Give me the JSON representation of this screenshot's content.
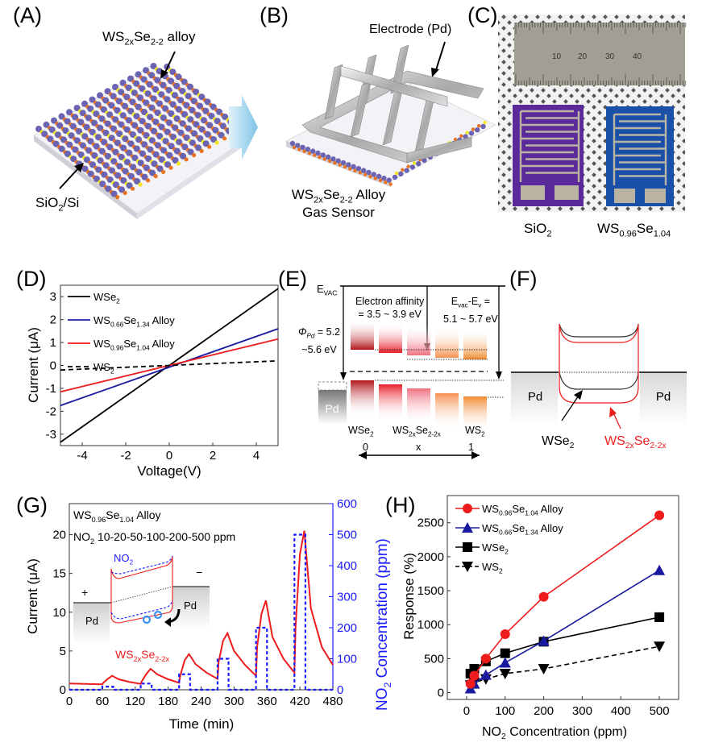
{
  "panels": {
    "A": {
      "label": "(A)",
      "alloy_label": {
        "pre": "WS",
        "s1": "2x",
        "mid": "Se",
        "s2": "2-2",
        "post": " alloy"
      },
      "substrate_label": {
        "pre": "SiO",
        "s1": "2",
        "post": "/Si"
      }
    },
    "B": {
      "label": "(B)",
      "electrode_label": "Electrode (Pd)",
      "caption_line1": {
        "pre": "WS",
        "s1": "2x",
        "mid": "Se",
        "s2": "2-2",
        "post": " Alloy"
      },
      "caption_line2": "Gas Sensor"
    },
    "C": {
      "label": "(C)",
      "ruler_ticks": [
        "10",
        "20",
        "30",
        "40"
      ],
      "left_sample": {
        "pre": "SiO",
        "s1": "2"
      },
      "right_sample": {
        "pre": "WS",
        "s1": "0.96",
        "mid": "Se",
        "s2": "1.04"
      },
      "colors": {
        "sio2": "#5a2a9a",
        "alloy": "#1a50a8",
        "electrode": "#b9b3a4",
        "ruler": "#9e9b90"
      }
    },
    "E": {
      "label": "(E)",
      "evac": {
        "pre": "E",
        "s1": "VAC"
      },
      "electron_affinity_line1": "Electron affinity",
      "electron_affinity_line2": "= 3.5 ~ 3.9 eV",
      "evac_ev_line1": {
        "pre": "E",
        "s1": "vac",
        "mid": "-E",
        "s2": "v",
        "post": " ="
      },
      "evac_ev_line2": "5.1 ~ 5.7 eV",
      "phi_line1": {
        "pre": "Φ",
        "s1": "Pd",
        "post": " = 5.2"
      },
      "phi_line2": "~5.6 eV",
      "pd_label": "Pd",
      "materials": [
        {
          "pre": "WSe",
          "s1": "2",
          "x": "0"
        },
        {
          "pre": "WS",
          "s1": "2x",
          "mid": "Se",
          "s2": "2-2x",
          "x": "x"
        },
        {
          "pre": "WS",
          "s1": "2",
          "x": "1"
        }
      ],
      "band_colors": [
        "#b0141a",
        "#e8202a",
        "#f07080",
        "#f59050",
        "#f08a30"
      ]
    },
    "F": {
      "label": "(F)",
      "pd_left": "Pd",
      "pd_right": "Pd",
      "wse2_label": {
        "pre": "WSe",
        "s1": "2"
      },
      "alloy_label": {
        "pre": "WS",
        "s1": "2x",
        "mid": "Se",
        "s2": "2-2x"
      }
    },
    "G": {
      "label": "(G)",
      "inset_title_1": {
        "pre": "WS",
        "s1": "0.96",
        "mid": "Se",
        "s2": "1.04",
        "post": " Alloy"
      },
      "inset_title_2": {
        "pre": "NO",
        "s1": "2",
        "post": " 10-20-50-100-200-500 ppm"
      },
      "inset_no2": {
        "pre": "NO",
        "s1": "2"
      },
      "inset_plus": "+",
      "inset_minus": "−",
      "inset_pd_left": "Pd",
      "inset_pd_right": "Pd",
      "material_label": {
        "pre": "WS",
        "s1": "2x",
        "mid": "Se",
        "s2": "2-2x"
      }
    },
    "H": {
      "label": "(H)"
    },
    "D": {
      "label": "(D)"
    }
  },
  "chart_data": [
    {
      "id": "D",
      "type": "line",
      "title": "",
      "xlabel": "Voltage(V)",
      "ylabel": "Current (μA)",
      "xlim": [
        -5,
        5
      ],
      "ylim": [
        -3.5,
        3.5
      ],
      "xticks": [
        -4,
        -2,
        0,
        2,
        4
      ],
      "yticks": [
        -3,
        -2,
        -1,
        0,
        1,
        2,
        3
      ],
      "legend_position": "top-left",
      "series": [
        {
          "name": "WSe2",
          "legend": {
            "pre": "WSe",
            "s1": "2"
          },
          "color": "#000000",
          "dash": false,
          "x": [
            -5,
            5
          ],
          "y": [
            -3.35,
            3.35
          ]
        },
        {
          "name": "WS0.66Se1.34 Alloy",
          "legend": {
            "pre": "WS",
            "s1": "0.66",
            "mid": "Se",
            "s2": "1.34",
            "post": " Alloy"
          },
          "color": "#1a1aa0",
          "dash": false,
          "x": [
            -5,
            5
          ],
          "y": [
            -1.75,
            1.6
          ]
        },
        {
          "name": "WS0.96Se1.04 Alloy",
          "legend": {
            "pre": "WS",
            "s1": "0.96",
            "mid": "Se",
            "s2": "1.04",
            "post": " Alloy"
          },
          "color": "#ee1c1c",
          "dash": false,
          "x": [
            -5,
            5
          ],
          "y": [
            -1.15,
            1.15
          ]
        },
        {
          "name": "WS2",
          "legend": {
            "pre": "WS",
            "s1": "2"
          },
          "color": "#000000",
          "dash": true,
          "x": [
            -5,
            5
          ],
          "y": [
            -0.2,
            0.2
          ]
        }
      ]
    },
    {
      "id": "G",
      "type": "line",
      "title": "",
      "xlabel": "Time (min)",
      "ylabel": "Current (μA)",
      "ylabel_right": {
        "pre": "NO",
        "s1": "2",
        "post": " Concentration (ppm)"
      },
      "xlim": [
        0,
        480
      ],
      "ylim": [
        0,
        24
      ],
      "ylim_right": [
        0,
        600
      ],
      "xticks": [
        0,
        60,
        120,
        180,
        240,
        300,
        360,
        420,
        480
      ],
      "yticks": [
        0,
        5,
        10,
        15,
        20
      ],
      "yticks_right": [
        0,
        100,
        200,
        300,
        400,
        500,
        600
      ],
      "series": [
        {
          "name": "Current",
          "axis": "left",
          "color": "#ee1c1c",
          "x": [
            0,
            60,
            62,
            70,
            78,
            90,
            110,
            130,
            132,
            140,
            148,
            160,
            180,
            200,
            202,
            210,
            218,
            230,
            250,
            270,
            272,
            280,
            288,
            300,
            320,
            340,
            342,
            350,
            358,
            370,
            390,
            410,
            412,
            420,
            428,
            440,
            460,
            480
          ],
          "y": [
            0.8,
            0.7,
            0.9,
            1.4,
            1.8,
            1.35,
            1.0,
            0.75,
            1.1,
            2.0,
            2.7,
            2.0,
            1.35,
            0.9,
            1.8,
            3.8,
            4.6,
            3.3,
            2.2,
            1.4,
            3.6,
            6.3,
            7.3,
            5.0,
            3.2,
            1.8,
            5.5,
            9.8,
            11.5,
            6.8,
            4.0,
            2.2,
            8.0,
            17.5,
            20.5,
            10.5,
            5.5,
            3.2
          ]
        },
        {
          "name": "NO2 Concentration",
          "axis": "right",
          "color": "#1a1aff",
          "dash": true,
          "x": [
            0,
            60,
            60,
            80,
            80,
            130,
            130,
            150,
            150,
            200,
            200,
            220,
            220,
            270,
            270,
            290,
            290,
            340,
            340,
            360,
            360,
            410,
            410,
            430,
            430,
            480
          ],
          "y": [
            0,
            0,
            10,
            10,
            0,
            0,
            20,
            20,
            0,
            0,
            50,
            50,
            0,
            0,
            100,
            100,
            0,
            0,
            200,
            200,
            0,
            0,
            500,
            500,
            0,
            0
          ]
        }
      ]
    },
    {
      "id": "H",
      "type": "line",
      "title": "",
      "xlabel": {
        "pre": "NO",
        "s1": "2",
        "post": " Concentration (ppm)"
      },
      "ylabel": "Response (%)",
      "xlim": [
        -50,
        550
      ],
      "ylim": [
        -100,
        2900
      ],
      "xticks": [
        0,
        100,
        200,
        300,
        400,
        500
      ],
      "yticks": [
        0,
        500,
        1000,
        1500,
        2000,
        2500
      ],
      "legend_position": "top-left",
      "x": [
        10,
        20,
        50,
        100,
        200,
        500
      ],
      "series": [
        {
          "name": "WS0.96Se1.04 Alloy",
          "legend": {
            "pre": "WS",
            "s1": "0.96",
            "mid": "Se",
            "s2": "1.04",
            "post": " Alloy"
          },
          "color": "#ee1c1c",
          "marker": "circle",
          "dash": false,
          "values": [
            130,
            250,
            500,
            860,
            1410,
            2610
          ]
        },
        {
          "name": "WS0.66Se1.34 Alloy",
          "legend": {
            "pre": "WS",
            "s1": "0.66",
            "mid": "Se",
            "s2": "1.34",
            "post": " Alloy"
          },
          "color": "#1a1aa0",
          "marker": "triangle-up",
          "dash": false,
          "values": [
            60,
            130,
            260,
            440,
            760,
            1800
          ]
        },
        {
          "name": "WSe2",
          "legend": {
            "pre": "WSe",
            "s1": "2"
          },
          "color": "#000000",
          "marker": "square",
          "dash": false,
          "values": [
            280,
            350,
            460,
            580,
            750,
            1110
          ]
        },
        {
          "name": "WS2",
          "legend": {
            "pre": "WS",
            "s1": "2"
          },
          "color": "#000000",
          "marker": "triangle-down",
          "dash": true,
          "values": [
            110,
            150,
            200,
            280,
            350,
            680
          ]
        }
      ]
    }
  ]
}
